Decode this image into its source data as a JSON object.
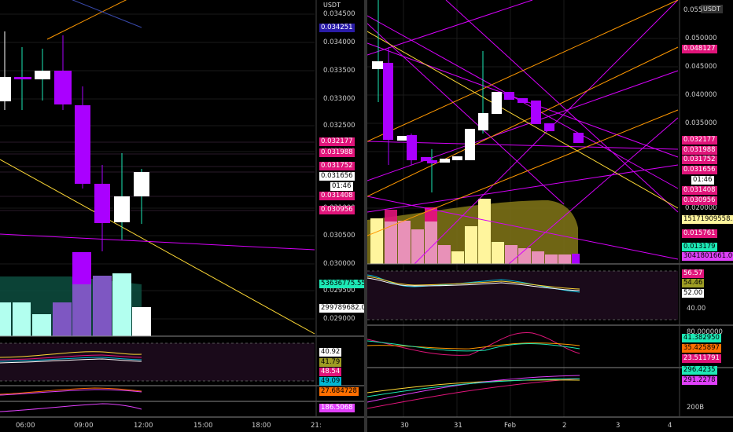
{
  "left": {
    "currency": "USDT",
    "ticks": [
      "0.034500",
      "0.034000",
      "0.033500",
      "0.033000",
      "0.032500",
      "0.032000",
      "0.031000",
      "0.030500",
      "0.030000",
      "0.029500",
      "0.029000"
    ],
    "labels": [
      {
        "text": "0.034251",
        "bg": "#2a1ca8",
        "fg": "#fff"
      },
      {
        "text": "0.032177",
        "bg": "#e0147a",
        "fg": "#fff"
      },
      {
        "text": "0.031988",
        "bg": "#e0147a",
        "fg": "#fff"
      },
      {
        "text": "0.031752",
        "bg": "#e0147a",
        "fg": "#fff"
      },
      {
        "text": "0.031656",
        "bg": "#fff",
        "fg": "#000"
      },
      {
        "text": "01:46",
        "bg": "#fff",
        "fg": "#000"
      },
      {
        "text": "0.031408",
        "bg": "#e0147a",
        "fg": "#fff"
      },
      {
        "text": "0.030956",
        "bg": "#e0147a",
        "fg": "#fff"
      },
      {
        "text": "53636775.550",
        "bg": "#1de9b6",
        "fg": "#000"
      },
      {
        "text": "299789682.000",
        "bg": "#fff",
        "fg": "#000"
      },
      {
        "text": "40.92",
        "bg": "#fff",
        "fg": "#000"
      },
      {
        "text": "41.79",
        "bg": "#9e9d24",
        "fg": "#000"
      },
      {
        "text": "48.54",
        "bg": "#e0147a",
        "fg": "#fff"
      },
      {
        "text": "49.09",
        "bg": "#00b8d4",
        "fg": "#000"
      },
      {
        "text": "27.684728",
        "bg": "#ff6f00",
        "fg": "#000"
      },
      {
        "text": "186.5068",
        "bg": "#e040fb",
        "fg": "#fff"
      }
    ],
    "times": [
      "06:00",
      "09:00",
      "12:00",
      "15:00",
      "18:00",
      "21:"
    ]
  },
  "right": {
    "currency": "USDT",
    "ticks": [
      "0.050000",
      "0.045000",
      "0.040000",
      "0.035000",
      "0.030000",
      "0.020000"
    ],
    "top_tick": "0.055",
    "labels": [
      {
        "text": "0.048127",
        "bg": "#e0147a",
        "fg": "#fff"
      },
      {
        "text": "0.032177",
        "bg": "#e0147a",
        "fg": "#fff"
      },
      {
        "text": "0.031988",
        "bg": "#e0147a",
        "fg": "#fff"
      },
      {
        "text": "0.031752",
        "bg": "#e0147a",
        "fg": "#fff"
      },
      {
        "text": "0.031656",
        "bg": "#e0147a",
        "fg": "#fff"
      },
      {
        "text": "01:46",
        "bg": "#fff",
        "fg": "#000"
      },
      {
        "text": "0.031408",
        "bg": "#e0147a",
        "fg": "#fff"
      },
      {
        "text": "0.030956",
        "bg": "#e0147a",
        "fg": "#fff"
      },
      {
        "text": "15171909558.500",
        "bg": "#fff59d",
        "fg": "#000"
      },
      {
        "text": "0.015761",
        "bg": "#e0147a",
        "fg": "#fff"
      },
      {
        "text": "0.013179",
        "bg": "#1de9b6",
        "fg": "#000"
      },
      {
        "text": "3041801661.000",
        "bg": "#e040fb",
        "fg": "#000"
      },
      {
        "text": "56.57",
        "bg": "#e0147a",
        "fg": "#fff"
      },
      {
        "text": "54.46",
        "bg": "#9e9d24",
        "fg": "#000"
      },
      {
        "text": "52.00",
        "bg": "#fff",
        "fg": "#000"
      },
      {
        "text": "40.00",
        "bg": "",
        "fg": "#ccc"
      },
      {
        "text": "80.000000",
        "bg": "",
        "fg": "#ccc"
      },
      {
        "text": "41.382950",
        "bg": "#1de9b6",
        "fg": "#000"
      },
      {
        "text": "35.425897",
        "bg": "#ff6f00",
        "fg": "#000"
      },
      {
        "text": "23.511791",
        "bg": "#e0147a",
        "fg": "#fff"
      },
      {
        "text": "296.4235",
        "bg": "#1de9b6",
        "fg": "#000"
      },
      {
        "text": "291.2278",
        "bg": "#e040fb",
        "fg": "#000"
      },
      {
        "text": "200B",
        "bg": "",
        "fg": "#ccc"
      }
    ],
    "times": [
      "30",
      "31",
      "Feb",
      "2",
      "3",
      "4"
    ]
  },
  "colors": {
    "up": "#ffffff",
    "down": "#aa00ff",
    "magenta": "#e0147a",
    "orange": "#ff9800",
    "yellow": "#fdd835"
  }
}
